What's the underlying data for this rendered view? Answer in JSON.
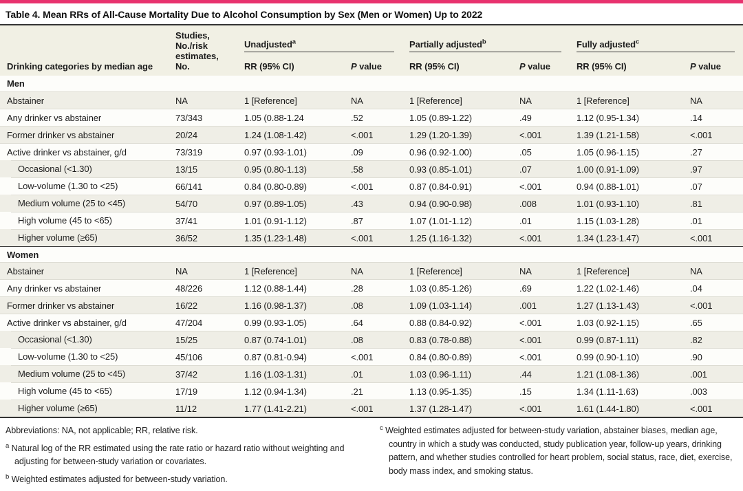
{
  "page": {
    "accent_color": "#E8326E",
    "title": "Table 4. Mean RRs of All-Cause Mortality Due to Alcohol Consumption by Sex (Men or Women) Up to 2022"
  },
  "table": {
    "header": {
      "category_col": "Drinking categories by median age",
      "studies_col": "Studies,\nNo./risk\nestimates, No.",
      "groups": [
        {
          "label": "Unadjusted",
          "marker": "a"
        },
        {
          "label": "Partially adjusted",
          "marker": "b"
        },
        {
          "label": "Fully adjusted",
          "marker": "c"
        }
      ],
      "rr_col": "RR (95% CI)",
      "p_col_italic": "P",
      "p_col_rest": " value"
    },
    "sections": [
      {
        "label": "Men",
        "rows": [
          {
            "category": "Abstainer",
            "indent": false,
            "studies": "NA",
            "u_rr": "1 [Reference]",
            "u_p": "NA",
            "pa_rr": "1 [Reference]",
            "pa_p": "NA",
            "fa_rr": "1 [Reference]",
            "fa_p": "NA"
          },
          {
            "category": "Any drinker vs abstainer",
            "indent": false,
            "studies": "73/343",
            "u_rr": "1.05 (0.88-1.24",
            "u_p": ".52",
            "pa_rr": "1.05 (0.89-1.22)",
            "pa_p": ".49",
            "fa_rr": "1.12 (0.95-1.34)",
            "fa_p": ".14"
          },
          {
            "category": "Former drinker vs abstainer",
            "indent": false,
            "studies": "20/24",
            "u_rr": "1.24 (1.08-1.42)",
            "u_p": "<.001",
            "pa_rr": "1.29 (1.20-1.39)",
            "pa_p": "<.001",
            "fa_rr": "1.39 (1.21-1.58)",
            "fa_p": "<.001"
          },
          {
            "category": "Active drinker vs abstainer, g/d",
            "indent": false,
            "studies": "73/319",
            "u_rr": "0.97 (0.93-1.01)",
            "u_p": ".09",
            "pa_rr": "0.96 (0.92-1.00)",
            "pa_p": ".05",
            "fa_rr": "1.05 (0.96-1.15)",
            "fa_p": ".27"
          },
          {
            "category": "Occasional (<1.30)",
            "indent": true,
            "studies": "13/15",
            "u_rr": "0.95 (0.80-1.13)",
            "u_p": ".58",
            "pa_rr": "0.93 (0.85-1.01)",
            "pa_p": ".07",
            "fa_rr": "1.00 (0.91-1.09)",
            "fa_p": ".97"
          },
          {
            "category": "Low-volume (1.30 to <25)",
            "indent": true,
            "studies": "66/141",
            "u_rr": "0.84 (0.80-0.89)",
            "u_p": "<.001",
            "pa_rr": "0.87 (0.84-0.91)",
            "pa_p": "<.001",
            "fa_rr": "0.94 (0.88-1.01)",
            "fa_p": ".07"
          },
          {
            "category": "Medium volume (25 to <45)",
            "indent": true,
            "studies": "54/70",
            "u_rr": "0.97 (0.89-1.05)",
            "u_p": ".43",
            "pa_rr": "0.94 (0.90-0.98)",
            "pa_p": ".008",
            "fa_rr": "1.01 (0.93-1.10)",
            "fa_p": ".81"
          },
          {
            "category": "High volume (45 to <65)",
            "indent": true,
            "studies": "37/41",
            "u_rr": "1.01 (0.91-1.12)",
            "u_p": ".87",
            "pa_rr": "1.07 (1.01-1.12)",
            "pa_p": ".01",
            "fa_rr": "1.15 (1.03-1.28)",
            "fa_p": ".01"
          },
          {
            "category": "Higher volume (≥65)",
            "indent": true,
            "studies": "36/52",
            "u_rr": "1.35 (1.23-1.48)",
            "u_p": "<.001",
            "pa_rr": "1.25 (1.16-1.32)",
            "pa_p": "<.001",
            "fa_rr": "1.34 (1.23-1.47)",
            "fa_p": "<.001"
          }
        ]
      },
      {
        "label": "Women",
        "rows": [
          {
            "category": "Abstainer",
            "indent": false,
            "studies": "NA",
            "u_rr": "1 [Reference]",
            "u_p": "NA",
            "pa_rr": "1 [Reference]",
            "pa_p": "NA",
            "fa_rr": "1 [Reference]",
            "fa_p": "NA"
          },
          {
            "category": "Any drinker vs abstainer",
            "indent": false,
            "studies": "48/226",
            "u_rr": "1.12 (0.88-1.44)",
            "u_p": ".28",
            "pa_rr": "1.03 (0.85-1.26)",
            "pa_p": ".69",
            "fa_rr": "1.22 (1.02-1.46)",
            "fa_p": ".04"
          },
          {
            "category": "Former drinker vs abstainer",
            "indent": false,
            "studies": "16/22",
            "u_rr": "1.16 (0.98-1.37)",
            "u_p": ".08",
            "pa_rr": "1.09 (1.03-1.14)",
            "pa_p": ".001",
            "fa_rr": "1.27 (1.13-1.43)",
            "fa_p": "<.001"
          },
          {
            "category": "Active drinker vs abstainer, g/d",
            "indent": false,
            "studies": "47/204",
            "u_rr": "0.99 (0.93-1.05)",
            "u_p": ".64",
            "pa_rr": "0.88 (0.84-0.92)",
            "pa_p": "<.001",
            "fa_rr": "1.03 (0.92-1.15)",
            "fa_p": ".65"
          },
          {
            "category": "Occasional (<1.30)",
            "indent": true,
            "studies": "15/25",
            "u_rr": "0.87 (0.74-1.01)",
            "u_p": ".08",
            "pa_rr": "0.83 (0.78-0.88)",
            "pa_p": "<.001",
            "fa_rr": "0.99 (0.87-1.11)",
            "fa_p": ".82"
          },
          {
            "category": "Low-volume (1.30 to <25)",
            "indent": true,
            "studies": "45/106",
            "u_rr": "0.87 (0.81-0.94)",
            "u_p": "<.001",
            "pa_rr": "0.84 (0.80-0.89)",
            "pa_p": "<.001",
            "fa_rr": "0.99 (0.90-1.10)",
            "fa_p": ".90"
          },
          {
            "category": "Medium volume (25 to <45)",
            "indent": true,
            "studies": "37/42",
            "u_rr": "1.16 (1.03-1.31)",
            "u_p": ".01",
            "pa_rr": "1.03 (0.96-1.11)",
            "pa_p": ".44",
            "fa_rr": "1.21 (1.08-1.36)",
            "fa_p": ".001"
          },
          {
            "category": "High volume (45 to <65)",
            "indent": true,
            "studies": "17/19",
            "u_rr": "1.12 (0.94-1.34)",
            "u_p": ".21",
            "pa_rr": "1.13 (0.95-1.35)",
            "pa_p": ".15",
            "fa_rr": "1.34 (1.11-1.63)",
            "fa_p": ".003"
          },
          {
            "category": "Higher volume (≥65)",
            "indent": true,
            "studies": "11/12",
            "u_rr": "1.77 (1.41-2.21)",
            "u_p": "<.001",
            "pa_rr": "1.37 (1.28-1.47)",
            "pa_p": "<.001",
            "fa_rr": "1.61 (1.44-1.80)",
            "fa_p": "<.001"
          }
        ]
      }
    ]
  },
  "footnotes": {
    "abbreviations": "Abbreviations: NA, not applicable; RR, relative risk.",
    "a_marker": "a",
    "a_text": "Natural log of the RR estimated using the rate ratio or hazard ratio without weighting and adjusting for between-study variation or covariates.",
    "b_marker": "b",
    "b_text": "Weighted estimates adjusted for between-study variation.",
    "c_marker": "c",
    "c_text": "Weighted estimates adjusted for between-study variation, abstainer biases, median age, country in which a study was conducted, study publication year, follow-up years, drinking pattern, and whether studies controlled for heart problem, social status, race, diet, exercise, body mass index, and smoking status."
  }
}
